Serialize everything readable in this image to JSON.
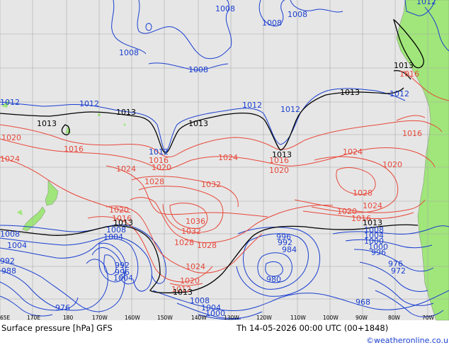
{
  "map": {
    "title": "Surface pressure [hPa] GFS",
    "valid_time": "Th 14-05-2026 00:00 UTC (00+1848)",
    "credit": "©weatheronline.co.uk",
    "longitude_ticks": [
      "65E",
      "170E",
      "180",
      "170W",
      "160W",
      "150W",
      "140W",
      "130W",
      "120W",
      "110W",
      "100W",
      "90W",
      "80W",
      "70W"
    ],
    "colors": {
      "ocean": "#e6e6e6",
      "land": "#a0e67a",
      "low_isobar": "#1a3fd0",
      "high_isobar": "#e8483a",
      "standard_isobar": "#000000",
      "grid": "#a8a8a8"
    },
    "isobar_labels": {
      "blue": [
        "1008",
        "1008",
        "1008",
        "1008",
        "1008",
        "1012",
        "1012",
        "1012",
        "1012",
        "1012",
        "1012",
        "1012",
        "1008",
        "1004",
        "1008",
        "1004",
        "992",
        "996",
        "1004",
        "976",
        "996",
        "992",
        "984",
        "980",
        "1008",
        "1004",
        "1000",
        "976",
        "972",
        "968",
        "1008",
        "1004",
        "1000",
        "1000",
        "996",
        "992",
        "988"
      ],
      "red": [
        "1016",
        "1020",
        "1016",
        "1024",
        "1016",
        "1020",
        "1024",
        "1020",
        "1016",
        "1016",
        "1024",
        "1028",
        "1032",
        "1024",
        "1020",
        "1028",
        "1020",
        "1016",
        "1036",
        "1032",
        "1028",
        "1024",
        "1020",
        "1016",
        "1020",
        "1012",
        "1024",
        "1028"
      ],
      "black": [
        "1013",
        "1013",
        "1013",
        "1013",
        "1013",
        "1013",
        "1013",
        "1013",
        "1013"
      ]
    }
  }
}
